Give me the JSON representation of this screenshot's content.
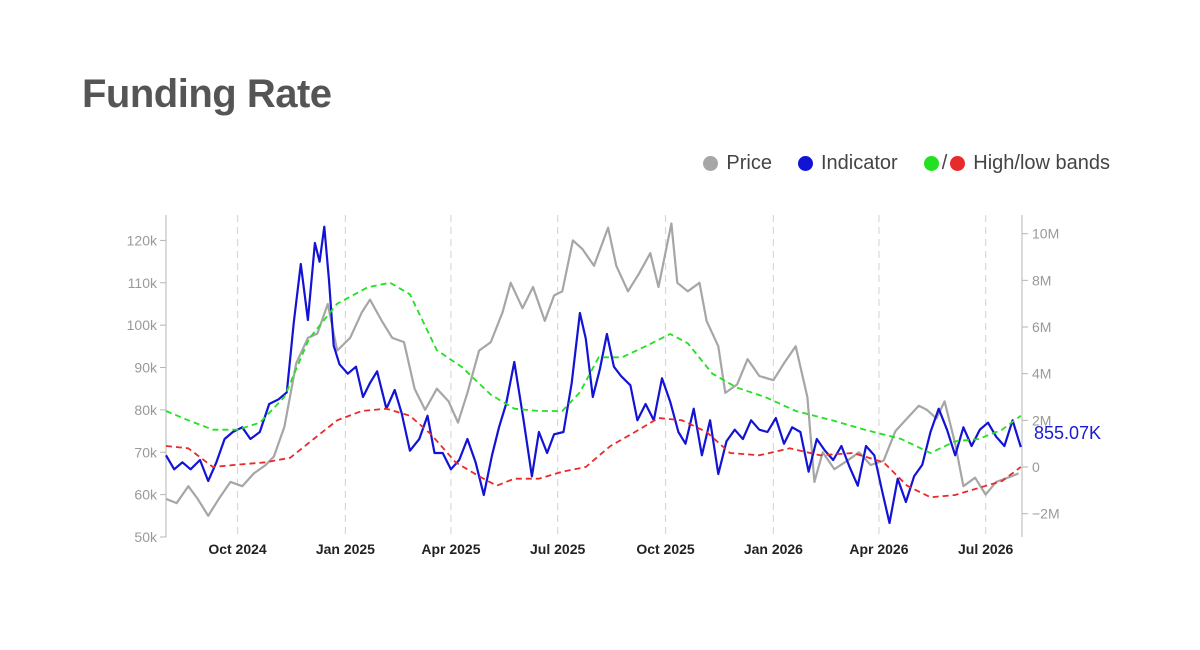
{
  "header": {
    "title": "Funding Rate"
  },
  "legend": {
    "price": "Price",
    "indicator": "Indicator",
    "bands_separator": "/",
    "bands": "High/low bands"
  },
  "colors": {
    "price": "#a6a6a6",
    "indicator": "#1313d6",
    "high_band": "#22e022",
    "low_band": "#e82a2a"
  },
  "chart_data": {
    "type": "line",
    "x_tick_labels": [
      "Oct 2024",
      "Jan 2025",
      "Apr 2025",
      "Jul 2025",
      "Oct 2025",
      "Jan 2026",
      "Apr 2026",
      "Jul 2026"
    ],
    "x_range": [
      "2024-08-01",
      "2026-08-01"
    ],
    "y_left": {
      "ticks": [
        "50k",
        "60k",
        "70k",
        "80k",
        "90k",
        "100k",
        "110k",
        "120k"
      ],
      "range": [
        50000,
        126000
      ]
    },
    "y_right": {
      "ticks": [
        "−2M",
        "0",
        "2M",
        "4M",
        "6M",
        "8M",
        "10M"
      ],
      "range": [
        -3000000,
        10800000
      ]
    },
    "last_value_label": "855.07K",
    "grid": "vertical dashed",
    "series": [
      {
        "name": "Price",
        "axis": "left",
        "dash": false,
        "points": [
          [
            "2024-08-01",
            59000
          ],
          [
            "2024-08-10",
            58000
          ],
          [
            "2024-08-20",
            62000
          ],
          [
            "2024-08-28",
            59000
          ],
          [
            "2024-09-06",
            55000
          ],
          [
            "2024-09-15",
            59000
          ],
          [
            "2024-09-25",
            63000
          ],
          [
            "2024-10-05",
            62000
          ],
          [
            "2024-10-15",
            65000
          ],
          [
            "2024-10-25",
            67000
          ],
          [
            "2024-11-01",
            69000
          ],
          [
            "2024-11-10",
            76000
          ],
          [
            "2024-11-20",
            91000
          ],
          [
            "2024-11-30",
            97000
          ],
          [
            "2024-12-08",
            98000
          ],
          [
            "2024-12-17",
            105000
          ],
          [
            "2024-12-25",
            94000
          ],
          [
            "2025-01-05",
            97000
          ],
          [
            "2025-01-15",
            103000
          ],
          [
            "2025-01-22",
            106000
          ],
          [
            "2025-02-01",
            101000
          ],
          [
            "2025-02-10",
            97000
          ],
          [
            "2025-02-20",
            96000
          ],
          [
            "2025-03-01",
            85000
          ],
          [
            "2025-03-10",
            80000
          ],
          [
            "2025-03-20",
            85000
          ],
          [
            "2025-03-30",
            82000
          ],
          [
            "2025-04-07",
            77000
          ],
          [
            "2025-04-15",
            84000
          ],
          [
            "2025-04-25",
            94000
          ],
          [
            "2025-05-05",
            96000
          ],
          [
            "2025-05-15",
            103000
          ],
          [
            "2025-05-22",
            110000
          ],
          [
            "2025-06-01",
            104000
          ],
          [
            "2025-06-10",
            109000
          ],
          [
            "2025-06-20",
            101000
          ],
          [
            "2025-06-28",
            107000
          ],
          [
            "2025-07-05",
            108000
          ],
          [
            "2025-07-14",
            120000
          ],
          [
            "2025-07-22",
            118000
          ],
          [
            "2025-08-01",
            114000
          ],
          [
            "2025-08-13",
            123000
          ],
          [
            "2025-08-20",
            114000
          ],
          [
            "2025-08-30",
            108000
          ],
          [
            "2025-09-08",
            112000
          ],
          [
            "2025-09-18",
            117000
          ],
          [
            "2025-09-25",
            109000
          ],
          [
            "2025-10-06",
            124000
          ],
          [
            "2025-10-11",
            110000
          ],
          [
            "2025-10-20",
            108000
          ],
          [
            "2025-10-30",
            110000
          ],
          [
            "2025-11-05",
            101000
          ],
          [
            "2025-11-15",
            95000
          ],
          [
            "2025-11-21",
            84000
          ],
          [
            "2025-12-01",
            86000
          ],
          [
            "2025-12-10",
            92000
          ],
          [
            "2025-12-20",
            88000
          ],
          [
            "2026-01-01",
            87000
          ],
          [
            "2026-01-10",
            91000
          ],
          [
            "2026-01-20",
            95000
          ],
          [
            "2026-01-30",
            83000
          ],
          [
            "2026-02-05",
            63000
          ],
          [
            "2026-02-12",
            70000
          ],
          [
            "2026-02-22",
            66000
          ],
          [
            "2026-03-05",
            68000
          ],
          [
            "2026-03-15",
            70000
          ],
          [
            "2026-03-25",
            67000
          ],
          [
            "2026-04-05",
            68000
          ],
          [
            "2026-04-15",
            75000
          ],
          [
            "2026-04-25",
            78000
          ],
          [
            "2026-05-05",
            81000
          ],
          [
            "2026-05-12",
            80000
          ],
          [
            "2026-05-20",
            78000
          ],
          [
            "2026-05-27",
            82000
          ],
          [
            "2026-06-05",
            72000
          ],
          [
            "2026-06-12",
            62000
          ],
          [
            "2026-06-22",
            64000
          ],
          [
            "2026-07-01",
            60000
          ],
          [
            "2026-07-10",
            63000
          ],
          [
            "2026-07-20",
            64000
          ],
          [
            "2026-07-29",
            65000
          ]
        ]
      },
      {
        "name": "Indicator",
        "axis": "right",
        "dash": false,
        "points": [
          [
            "2024-08-01",
            0.5
          ],
          [
            "2024-08-08",
            -0.1
          ],
          [
            "2024-08-15",
            0.2
          ],
          [
            "2024-08-22",
            -0.1
          ],
          [
            "2024-08-30",
            0.3
          ],
          [
            "2024-09-06",
            -0.6
          ],
          [
            "2024-09-13",
            0.2
          ],
          [
            "2024-09-20",
            1.2
          ],
          [
            "2024-09-27",
            1.5
          ],
          [
            "2024-10-05",
            1.7
          ],
          [
            "2024-10-12",
            1.2
          ],
          [
            "2024-10-20",
            1.5
          ],
          [
            "2024-10-28",
            2.7
          ],
          [
            "2024-11-05",
            2.9
          ],
          [
            "2024-11-12",
            3.2
          ],
          [
            "2024-11-18",
            6.2
          ],
          [
            "2024-11-24",
            8.7
          ],
          [
            "2024-11-30",
            6.3
          ],
          [
            "2024-12-06",
            9.6
          ],
          [
            "2024-12-10",
            8.8
          ],
          [
            "2024-12-14",
            10.3
          ],
          [
            "2024-12-18",
            8.0
          ],
          [
            "2024-12-22",
            5.2
          ],
          [
            "2024-12-27",
            4.4
          ],
          [
            "2025-01-03",
            4.0
          ],
          [
            "2025-01-10",
            4.3
          ],
          [
            "2025-01-16",
            3.0
          ],
          [
            "2025-01-22",
            3.6
          ],
          [
            "2025-01-28",
            4.1
          ],
          [
            "2025-02-05",
            2.5
          ],
          [
            "2025-02-12",
            3.3
          ],
          [
            "2025-02-18",
            2.3
          ],
          [
            "2025-02-25",
            0.7
          ],
          [
            "2025-03-05",
            1.2
          ],
          [
            "2025-03-12",
            2.2
          ],
          [
            "2025-03-18",
            0.6
          ],
          [
            "2025-03-25",
            0.6
          ],
          [
            "2025-04-01",
            -0.1
          ],
          [
            "2025-04-08",
            0.3
          ],
          [
            "2025-04-15",
            1.2
          ],
          [
            "2025-04-22",
            0.2
          ],
          [
            "2025-04-29",
            -1.2
          ],
          [
            "2025-05-06",
            0.5
          ],
          [
            "2025-05-12",
            1.7
          ],
          [
            "2025-05-18",
            2.7
          ],
          [
            "2025-05-25",
            4.5
          ],
          [
            "2025-06-02",
            2.0
          ],
          [
            "2025-06-09",
            -0.4
          ],
          [
            "2025-06-15",
            1.5
          ],
          [
            "2025-06-22",
            0.6
          ],
          [
            "2025-06-28",
            1.4
          ],
          [
            "2025-07-06",
            1.5
          ],
          [
            "2025-07-13",
            3.6
          ],
          [
            "2025-07-20",
            6.6
          ],
          [
            "2025-07-25",
            5.5
          ],
          [
            "2025-07-31",
            3.0
          ],
          [
            "2025-08-06",
            4.2
          ],
          [
            "2025-08-12",
            5.7
          ],
          [
            "2025-08-18",
            4.3
          ],
          [
            "2025-08-24",
            3.9
          ],
          [
            "2025-09-01",
            3.5
          ],
          [
            "2025-09-07",
            2.0
          ],
          [
            "2025-09-14",
            2.7
          ],
          [
            "2025-09-21",
            2.0
          ],
          [
            "2025-09-28",
            3.8
          ],
          [
            "2025-10-05",
            2.8
          ],
          [
            "2025-10-12",
            1.5
          ],
          [
            "2025-10-18",
            1.0
          ],
          [
            "2025-10-25",
            2.5
          ],
          [
            "2025-11-01",
            0.5
          ],
          [
            "2025-11-08",
            2.0
          ],
          [
            "2025-11-15",
            -0.3
          ],
          [
            "2025-11-22",
            1.1
          ],
          [
            "2025-11-29",
            1.6
          ],
          [
            "2025-12-06",
            1.2
          ],
          [
            "2025-12-13",
            2.0
          ],
          [
            "2025-12-20",
            1.6
          ],
          [
            "2025-12-27",
            1.5
          ],
          [
            "2026-01-03",
            2.1
          ],
          [
            "2026-01-10",
            1.0
          ],
          [
            "2026-01-17",
            1.7
          ],
          [
            "2026-01-24",
            1.5
          ],
          [
            "2026-01-31",
            -0.2
          ],
          [
            "2026-02-07",
            1.2
          ],
          [
            "2026-02-14",
            0.7
          ],
          [
            "2026-02-21",
            0.3
          ],
          [
            "2026-02-28",
            0.9
          ],
          [
            "2026-03-07",
            0.0
          ],
          [
            "2026-03-14",
            -0.8
          ],
          [
            "2026-03-21",
            0.9
          ],
          [
            "2026-03-28",
            0.5
          ],
          [
            "2026-04-04",
            -1.1
          ],
          [
            "2026-04-10",
            -2.4
          ],
          [
            "2026-04-17",
            -0.5
          ],
          [
            "2026-04-24",
            -1.5
          ],
          [
            "2026-05-01",
            -0.4
          ],
          [
            "2026-05-08",
            0.1
          ],
          [
            "2026-05-15",
            1.5
          ],
          [
            "2026-05-22",
            2.5
          ],
          [
            "2026-05-29",
            1.6
          ],
          [
            "2026-06-05",
            0.5
          ],
          [
            "2026-06-12",
            1.7
          ],
          [
            "2026-06-19",
            0.9
          ],
          [
            "2026-06-26",
            1.6
          ],
          [
            "2026-07-03",
            1.9
          ],
          [
            "2026-07-10",
            1.3
          ],
          [
            "2026-07-17",
            0.9
          ],
          [
            "2026-07-24",
            2.0
          ],
          [
            "2026-07-31",
            0.855
          ]
        ]
      },
      {
        "name": "High band",
        "axis": "right",
        "dash": true,
        "points": [
          [
            "2024-08-01",
            2.4
          ],
          [
            "2024-08-20",
            2.0
          ],
          [
            "2024-09-10",
            1.6
          ],
          [
            "2024-10-01",
            1.6
          ],
          [
            "2024-10-20",
            1.9
          ],
          [
            "2024-11-10",
            3.0
          ],
          [
            "2024-12-01",
            5.5
          ],
          [
            "2024-12-25",
            7.0
          ],
          [
            "2025-01-20",
            7.7
          ],
          [
            "2025-02-08",
            7.9
          ],
          [
            "2025-02-25",
            7.4
          ],
          [
            "2025-03-20",
            5.0
          ],
          [
            "2025-04-10",
            4.3
          ],
          [
            "2025-05-05",
            3.1
          ],
          [
            "2025-05-25",
            2.5
          ],
          [
            "2025-06-15",
            2.4
          ],
          [
            "2025-07-05",
            2.4
          ],
          [
            "2025-07-20",
            3.2
          ],
          [
            "2025-08-05",
            4.7
          ],
          [
            "2025-08-25",
            4.7
          ],
          [
            "2025-09-15",
            5.2
          ],
          [
            "2025-10-05",
            5.7
          ],
          [
            "2025-10-20",
            5.3
          ],
          [
            "2025-11-10",
            4.0
          ],
          [
            "2025-12-01",
            3.4
          ],
          [
            "2025-12-25",
            3.0
          ],
          [
            "2026-01-20",
            2.4
          ],
          [
            "2026-02-20",
            2.0
          ],
          [
            "2026-03-20",
            1.6
          ],
          [
            "2026-04-20",
            1.2
          ],
          [
            "2026-05-15",
            0.6
          ],
          [
            "2026-06-05",
            1.1
          ],
          [
            "2026-06-25",
            1.2
          ],
          [
            "2026-07-15",
            1.6
          ],
          [
            "2026-07-31",
            2.2
          ]
        ]
      },
      {
        "name": "Low band",
        "axis": "right",
        "dash": true,
        "points": [
          [
            "2024-08-01",
            0.9
          ],
          [
            "2024-08-20",
            0.8
          ],
          [
            "2024-09-10",
            0.0
          ],
          [
            "2024-10-01",
            0.1
          ],
          [
            "2024-10-25",
            0.2
          ],
          [
            "2024-11-15",
            0.4
          ],
          [
            "2024-12-05",
            1.2
          ],
          [
            "2024-12-25",
            2.0
          ],
          [
            "2025-01-15",
            2.4
          ],
          [
            "2025-02-05",
            2.5
          ],
          [
            "2025-02-25",
            2.2
          ],
          [
            "2025-03-15",
            1.4
          ],
          [
            "2025-04-05",
            0.2
          ],
          [
            "2025-04-25",
            -0.4
          ],
          [
            "2025-05-10",
            -0.8
          ],
          [
            "2025-05-25",
            -0.5
          ],
          [
            "2025-06-15",
            -0.5
          ],
          [
            "2025-07-05",
            -0.2
          ],
          [
            "2025-07-25",
            0.0
          ],
          [
            "2025-08-15",
            0.9
          ],
          [
            "2025-09-05",
            1.5
          ],
          [
            "2025-09-25",
            2.1
          ],
          [
            "2025-10-15",
            2.0
          ],
          [
            "2025-11-05",
            1.5
          ],
          [
            "2025-11-25",
            0.6
          ],
          [
            "2025-12-20",
            0.5
          ],
          [
            "2026-01-15",
            0.8
          ],
          [
            "2026-02-10",
            0.5
          ],
          [
            "2026-03-10",
            0.6
          ],
          [
            "2026-04-05",
            0.2
          ],
          [
            "2026-04-25",
            -0.8
          ],
          [
            "2026-05-15",
            -1.3
          ],
          [
            "2026-06-05",
            -1.2
          ],
          [
            "2026-06-25",
            -0.9
          ],
          [
            "2026-07-15",
            -0.6
          ],
          [
            "2026-07-31",
            0.0
          ]
        ]
      }
    ]
  }
}
